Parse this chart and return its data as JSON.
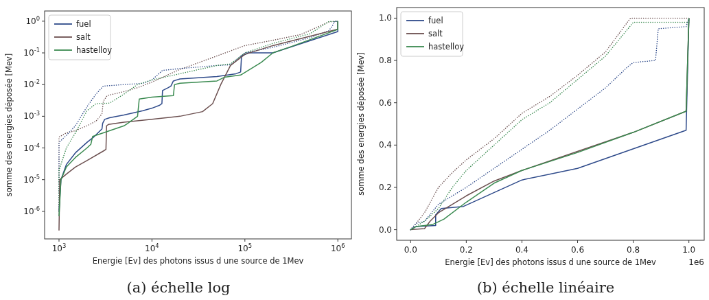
{
  "chart_data": [
    {
      "type": "line",
      "title": "(a) échelle log",
      "xlabel": "Energie [Ev] des photons issus d une source de 1Mev",
      "ylabel": "somme des energies déposée [Mev]",
      "log": "xy",
      "legend": "top left",
      "xlim": [
        700,
        1400000
      ],
      "ylim": [
        1.35e-07,
        2.1
      ],
      "xticks": [
        {
          "value": 1000,
          "label": "10$^{3}$"
        },
        {
          "value": 10000,
          "label": "10$^{4}$"
        },
        {
          "value": 100000,
          "label": "10$^{5}$"
        },
        {
          "value": 1000000,
          "label": "10$^{6}$"
        }
      ],
      "yticks": [
        {
          "value": 1e-06,
          "label": "10$^{-6}$"
        },
        {
          "value": 1e-05,
          "label": "10$^{-5}$"
        },
        {
          "value": 0.0001,
          "label": "10$^{-4}$"
        },
        {
          "value": 0.001,
          "label": "10$^{-3}$"
        },
        {
          "value": 0.01,
          "label": "10$^{-2}$"
        },
        {
          "value": 0.1,
          "label": "10$^{-1}$"
        },
        {
          "value": 1,
          "label": "10$^{0}$"
        }
      ],
      "series": [
        {
          "color": "#6b4f4f",
          "line_style": "dotted",
          "x": [
            1000,
            1000,
            1200,
            1500,
            2000,
            2500,
            2900,
            3000,
            3300,
            5000,
            7000,
            10000,
            20000,
            50000,
            100000,
            200000,
            400000,
            800000,
            1000000
          ],
          "values": [
            1e-06,
            0.00022,
            0.0003,
            0.00035,
            0.0005,
            0.0007,
            0.0012,
            0.003,
            0.0045,
            0.006,
            0.008,
            0.012,
            0.03,
            0.08,
            0.17,
            0.25,
            0.38,
            0.95,
            1.0
          ]
        },
        {
          "color": "#2e4a8a",
          "line_style": "dotted",
          "x": [
            1000,
            1000,
            1200,
            1500,
            2000,
            2500,
            3000,
            5000,
            8000,
            10000,
            13000,
            20000,
            50000,
            70000,
            100000,
            200000,
            500000,
            800000,
            890000,
            900000,
            1000000
          ],
          "values": [
            1e-06,
            0.00015,
            0.00025,
            0.0005,
            0.002,
            0.005,
            0.009,
            0.01,
            0.011,
            0.014,
            0.028,
            0.032,
            0.04,
            0.042,
            0.1,
            0.15,
            0.3,
            0.5,
            0.78,
            0.95,
            1.0
          ]
        },
        {
          "color": "#3a8a50",
          "line_style": "dotted",
          "x": [
            1000,
            1000,
            1200,
            1500,
            2000,
            2500,
            3500,
            5000,
            7000,
            10000,
            20000,
            50000,
            70000,
            100000,
            200000,
            500000,
            800000,
            1000000
          ],
          "values": [
            1e-06,
            2e-05,
            0.0001,
            0.0003,
            0.0015,
            0.0025,
            0.0026,
            0.005,
            0.01,
            0.014,
            0.022,
            0.04,
            0.045,
            0.1,
            0.2,
            0.4,
            0.97,
            1.0
          ]
        },
        {
          "name": "fuel",
          "color": "#2e4a8a",
          "line_style": "solid",
          "x": [
            1000,
            1050,
            1200,
            1500,
            2000,
            2400,
            2900,
            2950,
            3100,
            3500,
            5000,
            8000,
            10000,
            12000,
            12800,
            13000,
            15000,
            16000,
            17000,
            20000,
            50000,
            80000,
            90000,
            92000,
            110000,
            200000,
            1000000,
            1000000
          ],
          "values": [
            1e-06,
            1e-05,
            3e-05,
            7e-05,
            0.00015,
            0.00023,
            0.0004,
            0.0006,
            0.0008,
            0.0009,
            0.0011,
            0.0015,
            0.0018,
            0.0022,
            0.0025,
            0.0065,
            0.008,
            0.009,
            0.013,
            0.015,
            0.018,
            0.022,
            0.025,
            0.08,
            0.1,
            0.1,
            0.47,
            1.0
          ]
        },
        {
          "name": "salt",
          "color": "#6b4f4f",
          "line_style": "solid",
          "x": [
            1000,
            1020,
            1200,
            1500,
            2000,
            3000,
            3200,
            3250,
            3400,
            5000,
            10000,
            20000,
            35000,
            45000,
            55000,
            70000,
            100000,
            200000,
            1000000,
            1000000
          ],
          "values": [
            2.5e-07,
            1e-05,
            1.5e-05,
            2.5e-05,
            4e-05,
            8e-05,
            9e-05,
            0.0005,
            0.00055,
            0.00065,
            0.0008,
            0.001,
            0.0014,
            0.0025,
            0.01,
            0.04,
            0.09,
            0.17,
            0.56,
            1.0
          ]
        },
        {
          "name": "hastelloy",
          "color": "#3a8a50",
          "line_style": "solid",
          "x": [
            1000,
            1050,
            1200,
            1500,
            2000,
            2200,
            2300,
            3000,
            5000,
            5500,
            7000,
            7300,
            10000,
            17000,
            17500,
            20000,
            50000,
            60000,
            90000,
            150000,
            200000,
            300000,
            1000000,
            1000000
          ],
          "values": [
            7e-07,
            1e-05,
            2.5e-05,
            5e-05,
            0.0001,
            0.00013,
            0.00023,
            0.0003,
            0.0005,
            0.0006,
            0.001,
            0.0035,
            0.004,
            0.0045,
            0.01,
            0.011,
            0.013,
            0.017,
            0.02,
            0.05,
            0.1,
            0.15,
            0.55,
            1.0
          ]
        }
      ]
    },
    {
      "type": "line",
      "title": "(b) échelle linéaire",
      "xlabel": "Energie [Ev] des photons issus d une source de 1Mev",
      "ylabel": "somme des energies déposée [Mev]",
      "legend": "top left",
      "annotations": [
        "1e6"
      ],
      "xlim": [
        -0.05,
        1.055
      ],
      "ylim": [
        -0.05,
        1.05
      ],
      "xticks": [
        {
          "value": 0,
          "label": "0.0"
        },
        0.2,
        0.4,
        0.6,
        0.8,
        {
          "value": 1,
          "label": "1.0"
        }
      ],
      "yticks": [
        {
          "value": 0,
          "label": "0.0"
        },
        {
          "value": 0.2,
          "label": "0.2"
        },
        {
          "value": 0.4,
          "label": "0.4"
        },
        {
          "value": 0.6,
          "label": "0.6"
        },
        {
          "value": 0.8,
          "label": "0.8"
        },
        {
          "value": 1,
          "label": "1.0"
        }
      ],
      "series": [
        {
          "color": "#6b4f4f",
          "line_style": "dotted",
          "x": [
            0,
            0.02,
            0.05,
            0.1,
            0.15,
            0.2,
            0.3,
            0.4,
            0.5,
            0.6,
            0.7,
            0.79,
            1.0
          ],
          "values": [
            0,
            0.03,
            0.08,
            0.2,
            0.27,
            0.33,
            0.43,
            0.55,
            0.63,
            0.73,
            0.84,
            1.0,
            1.0
          ]
        },
        {
          "color": "#2e4a8a",
          "line_style": "dotted",
          "x": [
            0,
            0.02,
            0.05,
            0.1,
            0.2,
            0.3,
            0.4,
            0.5,
            0.6,
            0.7,
            0.78,
            0.8,
            0.88,
            0.89,
            0.99,
            1.0
          ],
          "values": [
            0,
            0.03,
            0.04,
            0.12,
            0.2,
            0.29,
            0.38,
            0.47,
            0.57,
            0.67,
            0.77,
            0.79,
            0.8,
            0.95,
            0.96,
            1.0
          ]
        },
        {
          "color": "#3a8a50",
          "line_style": "dotted",
          "x": [
            0,
            0.05,
            0.1,
            0.15,
            0.2,
            0.3,
            0.4,
            0.5,
            0.6,
            0.7,
            0.8,
            1.0,
            1.0
          ],
          "values": [
            0,
            0.04,
            0.1,
            0.2,
            0.28,
            0.4,
            0.52,
            0.6,
            0.71,
            0.82,
            0.98,
            0.98,
            1.0
          ]
        },
        {
          "name": "fuel",
          "color": "#2e4a8a",
          "line_style": "solid",
          "x": [
            0,
            0.02,
            0.09,
            0.09,
            0.11,
            0.19,
            0.4,
            0.6,
            0.99,
            1.0
          ],
          "values": [
            0,
            0.015,
            0.02,
            0.07,
            0.1,
            0.11,
            0.235,
            0.29,
            0.47,
            1.0
          ]
        },
        {
          "name": "salt",
          "color": "#6b4f4f",
          "line_style": "solid",
          "x": [
            0,
            0.05,
            0.07,
            0.1,
            0.2,
            0.3,
            0.4,
            0.6,
            0.8,
            0.99,
            1.0
          ],
          "values": [
            0,
            0.005,
            0.04,
            0.08,
            0.16,
            0.23,
            0.28,
            0.37,
            0.46,
            0.56,
            1.0
          ]
        },
        {
          "name": "hastelloy",
          "color": "#3a8a50",
          "line_style": "solid",
          "x": [
            0,
            0.02,
            0.08,
            0.12,
            0.2,
            0.3,
            0.4,
            0.6,
            0.8,
            0.99,
            1.0
          ],
          "values": [
            0,
            0.015,
            0.025,
            0.05,
            0.13,
            0.22,
            0.28,
            0.365,
            0.46,
            0.56,
            1.0
          ]
        }
      ]
    }
  ]
}
